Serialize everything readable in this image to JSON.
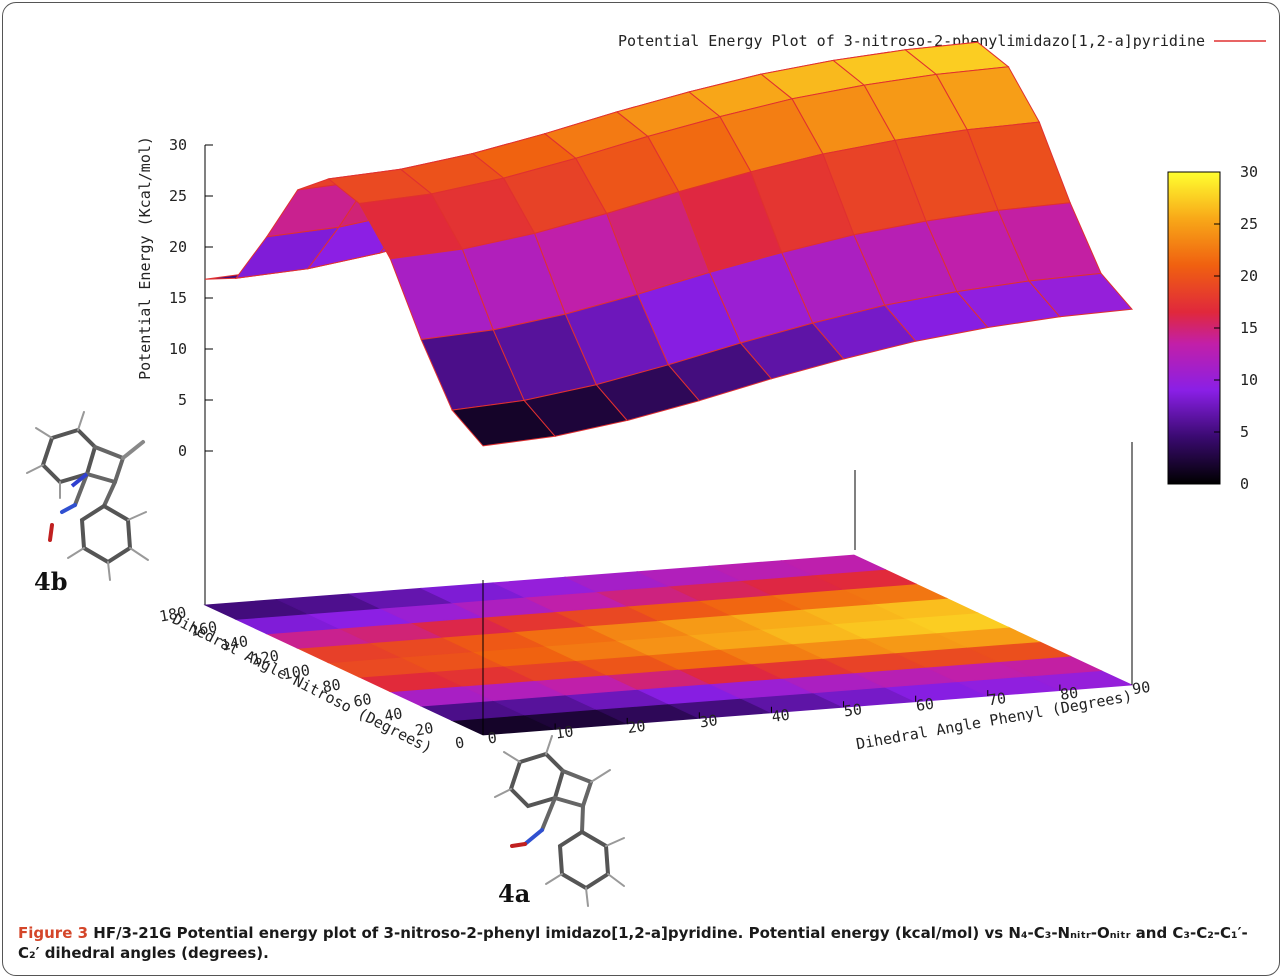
{
  "chart_data": {
    "type": "surface3d",
    "title": "Potential Energy Plot of 3-nitroso-2-phenylimidazo[1,2-a]pyridine",
    "xlabel": "Dihedral Angle Phenyl (Degrees)",
    "ylabel": "Dihedral Angle Nitroso (Degrees)",
    "zlabel": "Potential Energy (Kcal/mol)",
    "x_ticks": [
      "0",
      "10",
      "20",
      "30",
      "40",
      "50",
      "60",
      "70",
      "80",
      "90"
    ],
    "y_ticks": [
      "0",
      "20",
      "40",
      "60",
      "80",
      "100",
      "120",
      "140",
      "160",
      "180"
    ],
    "z_ticks": [
      "0",
      "5",
      "10",
      "15",
      "20",
      "25",
      "30"
    ],
    "colorbar_ticks": [
      "0",
      "5",
      "10",
      "15",
      "20",
      "25",
      "30"
    ],
    "xlim": [
      0,
      90
    ],
    "ylim": [
      0,
      180
    ],
    "zlim": [
      0,
      30
    ],
    "grid_x": [
      0,
      10,
      20,
      30,
      40,
      50,
      60,
      70,
      80,
      90
    ],
    "grid_y": [
      0,
      20,
      40,
      60,
      80,
      100,
      120,
      140,
      160,
      180
    ],
    "energy_profile_vs_nitroso": [
      0.4,
      2.5,
      8.0,
      14.5,
      18.5,
      19.5,
      17.0,
      11.0,
      5.5,
      4.0
    ],
    "phenyl_offset": [
      0.0,
      0.4,
      1.4,
      2.8,
      4.4,
      5.8,
      7.0,
      7.8,
      8.3,
      8.5
    ],
    "legend_position": "top-right",
    "colormap": [
      "#000000",
      "#5a0f96",
      "#8a1fe6",
      "#d8226a",
      "#f05a0a",
      "#f8a010",
      "#ffff30"
    ],
    "accent_line_color": "#e03030"
  },
  "molecules": {
    "label_top": "4b",
    "label_bottom": "4a"
  },
  "caption": {
    "figure_label": "Figure 3",
    "text": "HF/3-21G Potential energy plot of 3-nitroso-2-phenyl imidazo[1,2-a]pyridine. Potential energy (kcal/mol) vs N₄-C₃-Nₙᵢₜᵣ-Oₙᵢₜᵣ and C₃-C₂-C₁′-C₂′ dihedral angles (degrees)."
  }
}
